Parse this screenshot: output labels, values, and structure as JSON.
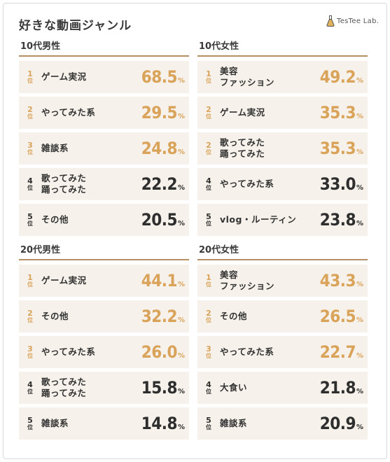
{
  "title": "好きな動画ジャンル",
  "logo_text": "TesTee Lab.",
  "rank_suffix": "位",
  "unit": "%",
  "colors": {
    "accent": "#d9a35a",
    "dark": "#2e2e2e",
    "row_bg": "#f6f1ea",
    "rule": "#b58e62"
  },
  "chart_data": [
    {
      "type": "table",
      "title": "10代男性",
      "rows": [
        {
          "rank": "1",
          "label": "ゲーム実況",
          "value": "68.5"
        },
        {
          "rank": "2",
          "label": "やってみた系",
          "value": "29.5"
        },
        {
          "rank": "3",
          "label": "雑談系",
          "value": "24.8"
        },
        {
          "rank": "4",
          "label": "歌ってみた\n踊ってみた",
          "value": "22.2"
        },
        {
          "rank": "5",
          "label": "その他",
          "value": "20.5"
        }
      ]
    },
    {
      "type": "table",
      "title": "10代女性",
      "rows": [
        {
          "rank": "1",
          "label": "美容\nファッション",
          "value": "49.2"
        },
        {
          "rank": "2",
          "label": "ゲーム実況",
          "value": "35.3"
        },
        {
          "rank": "2",
          "label": "歌ってみた\n踊ってみた",
          "value": "35.3"
        },
        {
          "rank": "4",
          "label": "やってみた系",
          "value": "33.0"
        },
        {
          "rank": "5",
          "label": "vlog・ルーティン",
          "value": "23.8"
        }
      ]
    },
    {
      "type": "table",
      "title": "20代男性",
      "rows": [
        {
          "rank": "1",
          "label": "ゲーム実況",
          "value": "44.1"
        },
        {
          "rank": "2",
          "label": "その他",
          "value": "32.2"
        },
        {
          "rank": "3",
          "label": "やってみた系",
          "value": "26.0"
        },
        {
          "rank": "4",
          "label": "歌ってみた\n踊ってみた",
          "value": "15.8"
        },
        {
          "rank": "5",
          "label": "雑談系",
          "value": "14.8"
        }
      ]
    },
    {
      "type": "table",
      "title": "20代女性",
      "rows": [
        {
          "rank": "1",
          "label": "美容\nファッション",
          "value": "43.3"
        },
        {
          "rank": "2",
          "label": "その他",
          "value": "26.5"
        },
        {
          "rank": "3",
          "label": "やってみた系",
          "value": "22.7"
        },
        {
          "rank": "4",
          "label": "大食い",
          "value": "21.8"
        },
        {
          "rank": "5",
          "label": "雑談系",
          "value": "20.9"
        }
      ]
    }
  ]
}
